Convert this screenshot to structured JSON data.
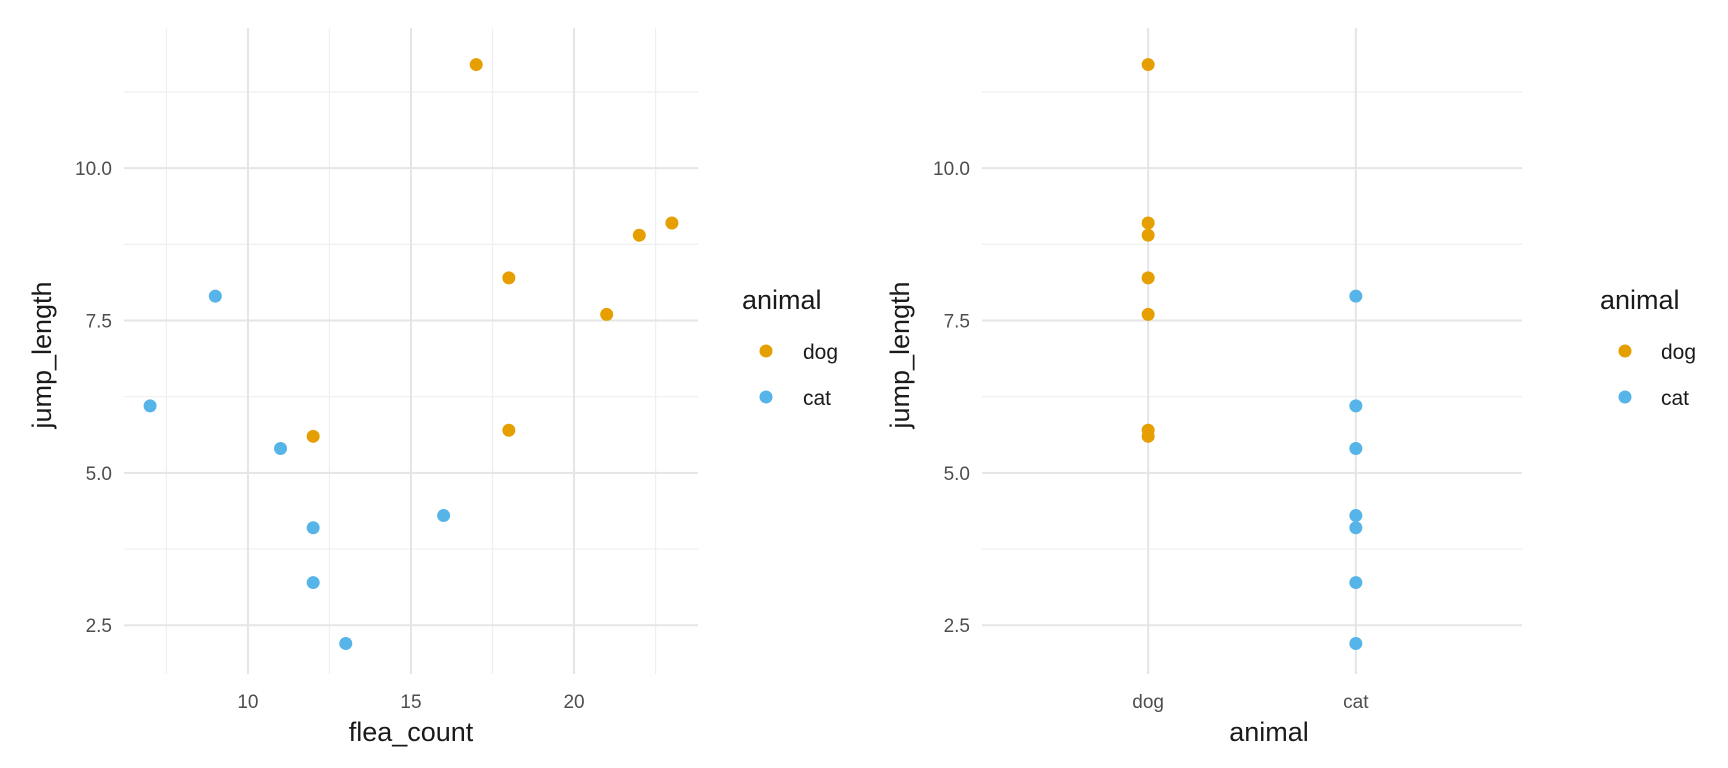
{
  "colors": {
    "dog": "#E69F00",
    "cat": "#56B4E9"
  },
  "chart_data": [
    {
      "type": "scatter",
      "xlabel": "flea_count",
      "ylabel": "jump_length",
      "xlim": [
        6.2,
        23.8
      ],
      "ylim": [
        1.7,
        12.3
      ],
      "x_ticks": [
        10,
        15,
        20
      ],
      "x_tick_labels": [
        "10",
        "15",
        "20"
      ],
      "y_ticks": [
        2.5,
        5.0,
        7.5,
        10.0
      ],
      "y_tick_labels": [
        "2.5",
        "5.0",
        "7.5",
        "10.0"
      ],
      "grid": true,
      "legend": {
        "title": "animal",
        "position": "right",
        "entries": [
          "dog",
          "cat"
        ]
      },
      "series": [
        {
          "name": "dog",
          "color": "#E69F00",
          "points": [
            [
              17,
              11.7
            ],
            [
              23,
              9.1
            ],
            [
              22,
              8.9
            ],
            [
              18,
              8.2
            ],
            [
              21,
              7.6
            ],
            [
              18,
              5.7
            ],
            [
              12,
              5.6
            ]
          ]
        },
        {
          "name": "cat",
          "color": "#56B4E9",
          "points": [
            [
              9,
              7.9
            ],
            [
              7,
              6.1
            ],
            [
              11,
              5.4
            ],
            [
              16,
              4.3
            ],
            [
              12,
              4.1
            ],
            [
              12,
              3.2
            ],
            [
              13,
              2.2
            ]
          ]
        }
      ]
    },
    {
      "type": "scatter",
      "xlabel": "animal",
      "ylabel": "jump_length",
      "categories": [
        "dog",
        "cat"
      ],
      "ylim": [
        1.7,
        12.3
      ],
      "y_ticks": [
        2.5,
        5.0,
        7.5,
        10.0
      ],
      "y_tick_labels": [
        "2.5",
        "5.0",
        "7.5",
        "10.0"
      ],
      "grid": true,
      "legend": {
        "title": "animal",
        "position": "right",
        "entries": [
          "dog",
          "cat"
        ]
      },
      "series": [
        {
          "name": "dog",
          "color": "#E69F00",
          "category": "dog",
          "values": [
            11.7,
            9.1,
            8.9,
            8.2,
            7.6,
            5.7,
            5.6
          ]
        },
        {
          "name": "cat",
          "color": "#56B4E9",
          "category": "cat",
          "values": [
            7.9,
            6.1,
            5.4,
            4.3,
            4.1,
            3.2,
            2.2
          ]
        }
      ]
    }
  ]
}
